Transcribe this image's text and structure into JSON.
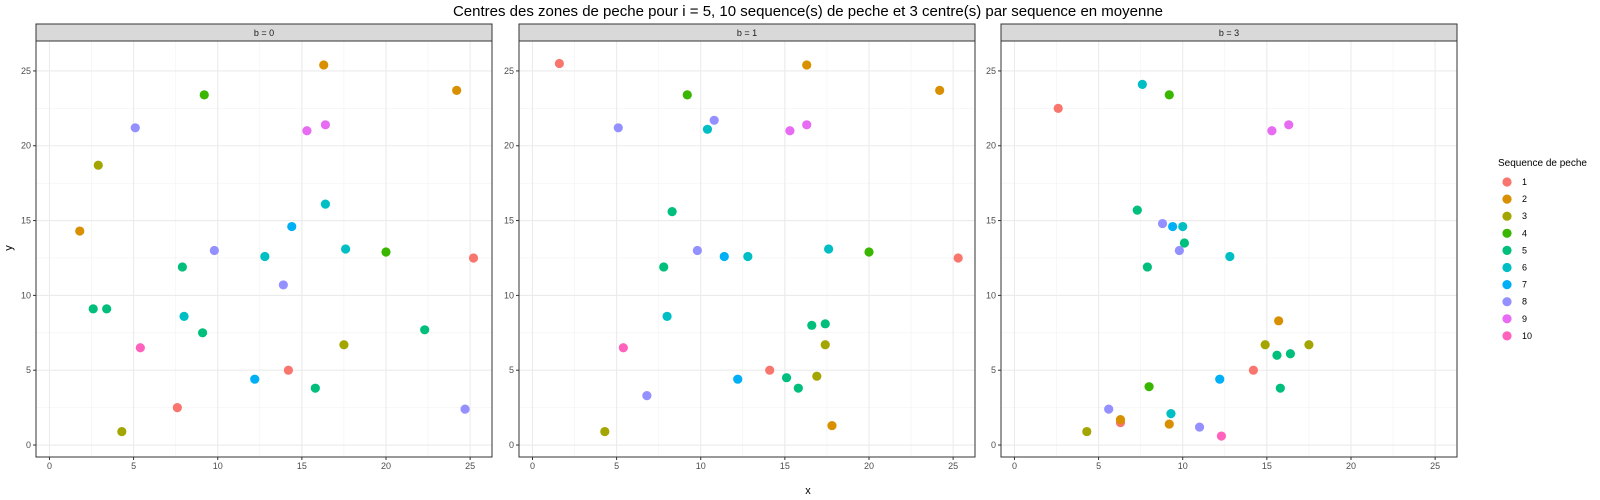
{
  "chart_data": {
    "type": "scatter",
    "title": "Centres des zones de peche pour i = 5, 10 sequence(s) de peche et 3 centre(s) par sequence en moyenne",
    "xlabel": "x",
    "ylabel": "y",
    "xlim": [
      -0.8,
      26.3
    ],
    "ylim": [
      -0.8,
      27
    ],
    "xticks": [
      0,
      5,
      10,
      15,
      20,
      25
    ],
    "yticks": [
      0,
      5,
      10,
      15,
      20,
      25
    ],
    "grid": true,
    "legend": {
      "title": "Sequence de peche",
      "position": "right",
      "items": [
        {
          "label": "1",
          "color": "#F8766D"
        },
        {
          "label": "2",
          "color": "#D89000"
        },
        {
          "label": "3",
          "color": "#A3A500"
        },
        {
          "label": "4",
          "color": "#39B600"
        },
        {
          "label": "5",
          "color": "#00BF7D"
        },
        {
          "label": "6",
          "color": "#00BFC4"
        },
        {
          "label": "7",
          "color": "#00B0F6"
        },
        {
          "label": "8",
          "color": "#9590FF"
        },
        {
          "label": "9",
          "color": "#E76BF3"
        },
        {
          "label": "10",
          "color": "#FF62BC"
        }
      ]
    },
    "panels": [
      {
        "label": "b = 0",
        "points": [
          {
            "x": 7.6,
            "y": 2.5,
            "seq": "1"
          },
          {
            "x": 14.2,
            "y": 5.0,
            "seq": "1"
          },
          {
            "x": 25.2,
            "y": 12.5,
            "seq": "1"
          },
          {
            "x": 1.8,
            "y": 14.3,
            "seq": "2"
          },
          {
            "x": 16.3,
            "y": 25.4,
            "seq": "2"
          },
          {
            "x": 24.2,
            "y": 23.7,
            "seq": "2"
          },
          {
            "x": 4.3,
            "y": 0.9,
            "seq": "3"
          },
          {
            "x": 2.9,
            "y": 18.7,
            "seq": "3"
          },
          {
            "x": 17.5,
            "y": 6.7,
            "seq": "3"
          },
          {
            "x": 9.2,
            "y": 23.4,
            "seq": "4"
          },
          {
            "x": 20.0,
            "y": 12.9,
            "seq": "4"
          },
          {
            "x": 2.6,
            "y": 9.1,
            "seq": "5"
          },
          {
            "x": 3.4,
            "y": 9.1,
            "seq": "5"
          },
          {
            "x": 7.9,
            "y": 11.9,
            "seq": "5"
          },
          {
            "x": 9.1,
            "y": 7.5,
            "seq": "5"
          },
          {
            "x": 15.8,
            "y": 3.8,
            "seq": "5"
          },
          {
            "x": 22.3,
            "y": 7.7,
            "seq": "5"
          },
          {
            "x": 8.0,
            "y": 8.6,
            "seq": "6"
          },
          {
            "x": 12.8,
            "y": 12.6,
            "seq": "6"
          },
          {
            "x": 16.4,
            "y": 16.1,
            "seq": "6"
          },
          {
            "x": 17.6,
            "y": 13.1,
            "seq": "6"
          },
          {
            "x": 12.2,
            "y": 4.4,
            "seq": "7"
          },
          {
            "x": 14.4,
            "y": 14.6,
            "seq": "7"
          },
          {
            "x": 5.1,
            "y": 21.2,
            "seq": "8"
          },
          {
            "x": 9.8,
            "y": 13.0,
            "seq": "8"
          },
          {
            "x": 13.9,
            "y": 10.7,
            "seq": "8"
          },
          {
            "x": 24.7,
            "y": 2.4,
            "seq": "8"
          },
          {
            "x": 15.3,
            "y": 21.0,
            "seq": "9"
          },
          {
            "x": 16.4,
            "y": 21.4,
            "seq": "9"
          },
          {
            "x": 5.4,
            "y": 6.5,
            "seq": "10"
          }
        ]
      },
      {
        "label": "b = 1",
        "points": [
          {
            "x": 1.6,
            "y": 25.5,
            "seq": "1"
          },
          {
            "x": 14.1,
            "y": 5.0,
            "seq": "1"
          },
          {
            "x": 25.3,
            "y": 12.5,
            "seq": "1"
          },
          {
            "x": 16.3,
            "y": 25.4,
            "seq": "2"
          },
          {
            "x": 24.2,
            "y": 23.7,
            "seq": "2"
          },
          {
            "x": 17.8,
            "y": 1.3,
            "seq": "2"
          },
          {
            "x": 4.3,
            "y": 0.9,
            "seq": "3"
          },
          {
            "x": 16.9,
            "y": 4.6,
            "seq": "3"
          },
          {
            "x": 17.4,
            "y": 6.7,
            "seq": "3"
          },
          {
            "x": 9.2,
            "y": 23.4,
            "seq": "4"
          },
          {
            "x": 20.0,
            "y": 12.9,
            "seq": "4"
          },
          {
            "x": 7.8,
            "y": 11.9,
            "seq": "5"
          },
          {
            "x": 8.3,
            "y": 15.6,
            "seq": "5"
          },
          {
            "x": 15.1,
            "y": 4.5,
            "seq": "5"
          },
          {
            "x": 15.8,
            "y": 3.8,
            "seq": "5"
          },
          {
            "x": 16.6,
            "y": 8.0,
            "seq": "5"
          },
          {
            "x": 17.4,
            "y": 8.1,
            "seq": "5"
          },
          {
            "x": 8.0,
            "y": 8.6,
            "seq": "6"
          },
          {
            "x": 10.4,
            "y": 21.1,
            "seq": "6"
          },
          {
            "x": 12.8,
            "y": 12.6,
            "seq": "6"
          },
          {
            "x": 17.6,
            "y": 13.1,
            "seq": "6"
          },
          {
            "x": 11.4,
            "y": 12.6,
            "seq": "7"
          },
          {
            "x": 12.2,
            "y": 4.4,
            "seq": "7"
          },
          {
            "x": 5.1,
            "y": 21.2,
            "seq": "8"
          },
          {
            "x": 6.8,
            "y": 3.3,
            "seq": "8"
          },
          {
            "x": 9.8,
            "y": 13.0,
            "seq": "8"
          },
          {
            "x": 10.8,
            "y": 21.7,
            "seq": "8"
          },
          {
            "x": 15.3,
            "y": 21.0,
            "seq": "9"
          },
          {
            "x": 16.3,
            "y": 21.4,
            "seq": "9"
          },
          {
            "x": 5.4,
            "y": 6.5,
            "seq": "10"
          }
        ]
      },
      {
        "label": "b = 3",
        "points": [
          {
            "x": 2.6,
            "y": 22.5,
            "seq": "1"
          },
          {
            "x": 6.3,
            "y": 1.5,
            "seq": "1"
          },
          {
            "x": 14.2,
            "y": 5.0,
            "seq": "1"
          },
          {
            "x": 6.3,
            "y": 1.7,
            "seq": "2"
          },
          {
            "x": 9.2,
            "y": 1.4,
            "seq": "2"
          },
          {
            "x": 15.7,
            "y": 8.3,
            "seq": "2"
          },
          {
            "x": 4.3,
            "y": 0.9,
            "seq": "3"
          },
          {
            "x": 14.9,
            "y": 6.7,
            "seq": "3"
          },
          {
            "x": 17.5,
            "y": 6.7,
            "seq": "3"
          },
          {
            "x": 8.0,
            "y": 3.9,
            "seq": "4"
          },
          {
            "x": 9.2,
            "y": 23.4,
            "seq": "4"
          },
          {
            "x": 7.3,
            "y": 15.7,
            "seq": "5"
          },
          {
            "x": 7.9,
            "y": 11.9,
            "seq": "5"
          },
          {
            "x": 10.1,
            "y": 13.5,
            "seq": "5"
          },
          {
            "x": 15.6,
            "y": 6.0,
            "seq": "5"
          },
          {
            "x": 15.8,
            "y": 3.8,
            "seq": "5"
          },
          {
            "x": 16.4,
            "y": 6.1,
            "seq": "5"
          },
          {
            "x": 7.6,
            "y": 24.1,
            "seq": "6"
          },
          {
            "x": 9.3,
            "y": 2.1,
            "seq": "6"
          },
          {
            "x": 10.0,
            "y": 14.6,
            "seq": "6"
          },
          {
            "x": 12.8,
            "y": 12.6,
            "seq": "6"
          },
          {
            "x": 9.4,
            "y": 14.6,
            "seq": "7"
          },
          {
            "x": 12.2,
            "y": 4.4,
            "seq": "7"
          },
          {
            "x": 5.6,
            "y": 2.4,
            "seq": "8"
          },
          {
            "x": 8.8,
            "y": 14.8,
            "seq": "8"
          },
          {
            "x": 9.8,
            "y": 13.0,
            "seq": "8"
          },
          {
            "x": 11.0,
            "y": 1.2,
            "seq": "8"
          },
          {
            "x": 15.3,
            "y": 21.0,
            "seq": "9"
          },
          {
            "x": 16.3,
            "y": 21.4,
            "seq": "9"
          },
          {
            "x": 12.3,
            "y": 0.6,
            "seq": "10"
          }
        ]
      }
    ]
  }
}
